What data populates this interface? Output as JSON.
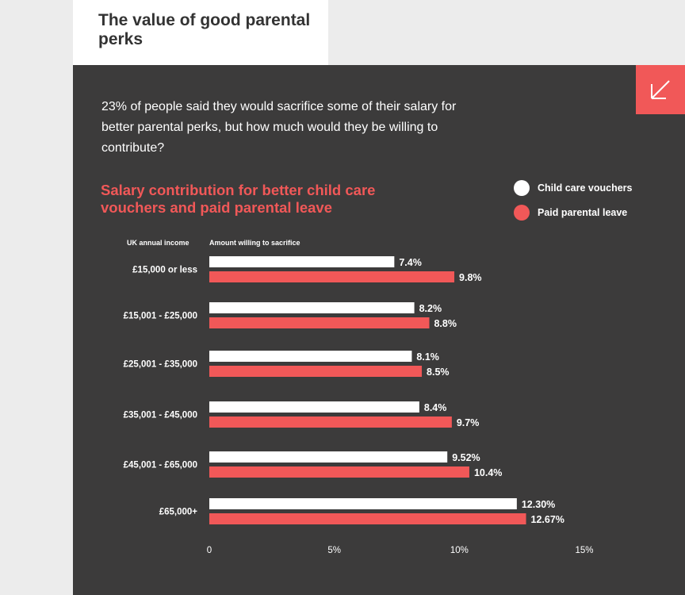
{
  "header": {
    "title": "The value of good parental perks"
  },
  "intro": "23% of people said they would sacrifice some of their salary for better parental perks, but how much would they be willing to contribute?",
  "corner_icon": "arrow-down-left-icon",
  "colors": {
    "accent": "#f15858",
    "panel": "#3c3b3b",
    "background": "#ececec",
    "child_care": "#ffffff",
    "paid_leave": "#f15858"
  },
  "chart_data": {
    "type": "bar",
    "orientation": "horizontal",
    "title": "Salary contribution for better child care vouchers and paid parental leave",
    "category_header": "UK annual income",
    "value_header": "Amount willing to sacrifice",
    "categories": [
      "£15,000 or less",
      "£15,001 - £25,000",
      "£25,001 - £35,000",
      "£35,001 - £45,000",
      "£45,001 - £65,000",
      "£65,000+"
    ],
    "series": [
      {
        "name": "Child care vouchers",
        "color": "#ffffff",
        "values": [
          7.4,
          8.2,
          8.1,
          8.4,
          9.52,
          12.3
        ],
        "labels": [
          "7.4%",
          "8.2%",
          "8.1%",
          "8.4%",
          "9.52%",
          "12.30%"
        ]
      },
      {
        "name": "Paid parental leave",
        "color": "#f15858",
        "values": [
          9.8,
          8.8,
          8.5,
          9.7,
          10.4,
          12.67
        ],
        "labels": [
          "9.8%",
          "8.8%",
          "8.5%",
          "9.7%",
          "10.4%",
          "12.67%"
        ]
      }
    ],
    "xlim": [
      0,
      15
    ],
    "ticks": [
      0,
      5,
      10,
      15
    ],
    "tick_labels": [
      "0",
      "5%",
      "10%",
      "15%"
    ],
    "grid": false,
    "legend_position": "top-right"
  }
}
